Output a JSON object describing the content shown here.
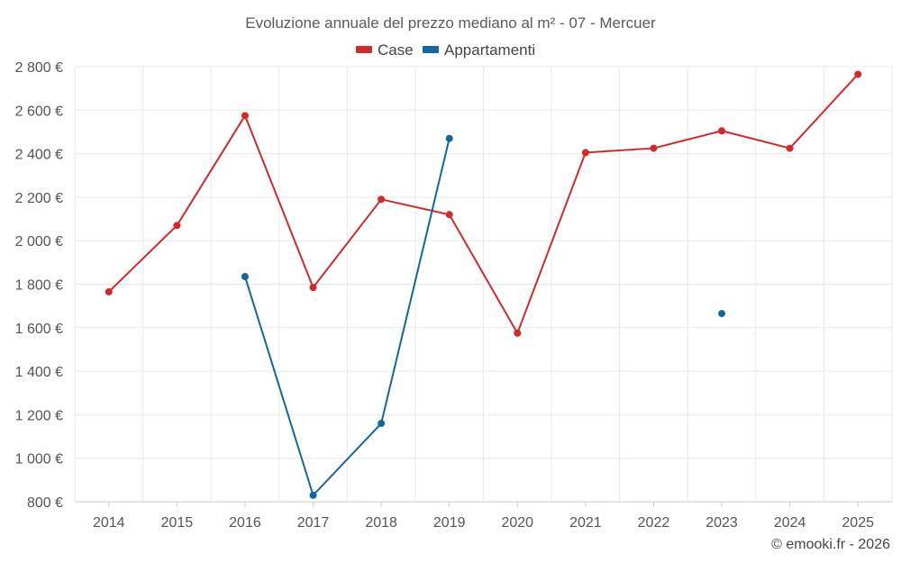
{
  "chart_data": {
    "type": "line",
    "title": "Evoluzione annuale del prezzo mediano al m² - 07 - Mercuer",
    "xlabel": "",
    "ylabel": "",
    "categories": [
      "2014",
      "2015",
      "2016",
      "2017",
      "2018",
      "2019",
      "2020",
      "2021",
      "2022",
      "2023",
      "2024",
      "2025"
    ],
    "ylim": [
      800,
      2800
    ],
    "yticks": [
      800,
      1000,
      1200,
      1400,
      1600,
      1800,
      2000,
      2200,
      2400,
      2600,
      2800
    ],
    "y_tick_labels": [
      "800 €",
      "1 000 €",
      "1 200 €",
      "1 400 €",
      "1 600 €",
      "1 800 €",
      "2 000 €",
      "2 200 €",
      "2 400 €",
      "2 600 €",
      "2 800 €"
    ],
    "grid": true,
    "legend_position": "top-center",
    "series": [
      {
        "name": "Case",
        "color": "#d12a2a",
        "values": [
          1765,
          2070,
          2575,
          1785,
          2190,
          2120,
          1575,
          2405,
          2425,
          2505,
          2425,
          2765
        ]
      },
      {
        "name": "Appartamenti",
        "color": "#1565a0",
        "values": [
          null,
          null,
          1835,
          830,
          1160,
          2470,
          null,
          null,
          null,
          1665,
          null,
          null
        ]
      }
    ]
  },
  "credit": "© emooki.fr - 2026"
}
